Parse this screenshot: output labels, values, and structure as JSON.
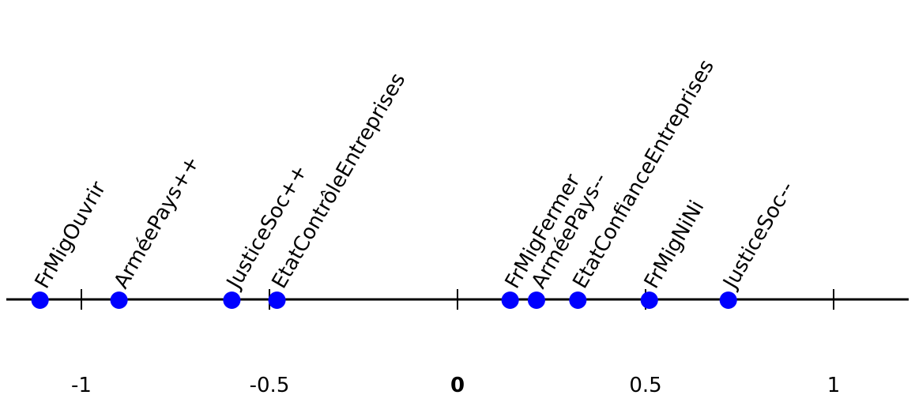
{
  "chart_data": {
    "type": "scatter",
    "title": "",
    "xlabel": "",
    "ylabel": "",
    "xlim": [
      -1.1,
      1.2
    ],
    "ticks": [
      {
        "value": -1,
        "label": "-1"
      },
      {
        "value": -0.5,
        "label": "-0.5"
      },
      {
        "value": 0,
        "label": "0"
      },
      {
        "value": 0.5,
        "label": "0.5"
      },
      {
        "value": 1,
        "label": "1"
      }
    ],
    "points": [
      {
        "label": "FrMigOuvrir",
        "x": -1.11
      },
      {
        "label": "ArméePays++",
        "x": -0.9
      },
      {
        "label": "JusticeSoc++",
        "x": -0.6
      },
      {
        "label": "EtatContrôleEntreprises",
        "x": -0.48
      },
      {
        "label": "FrMigFermer",
        "x": 0.14
      },
      {
        "label": "ArméePays--",
        "x": 0.21
      },
      {
        "label": "EtatConfianceEntreprises",
        "x": 0.32
      },
      {
        "label": "FrMigNiNi",
        "x": 0.51
      },
      {
        "label": "JusticeSoc--",
        "x": 0.72
      }
    ],
    "colors": {
      "point": "#0000ff",
      "axis": "#000000"
    },
    "grid": false
  }
}
